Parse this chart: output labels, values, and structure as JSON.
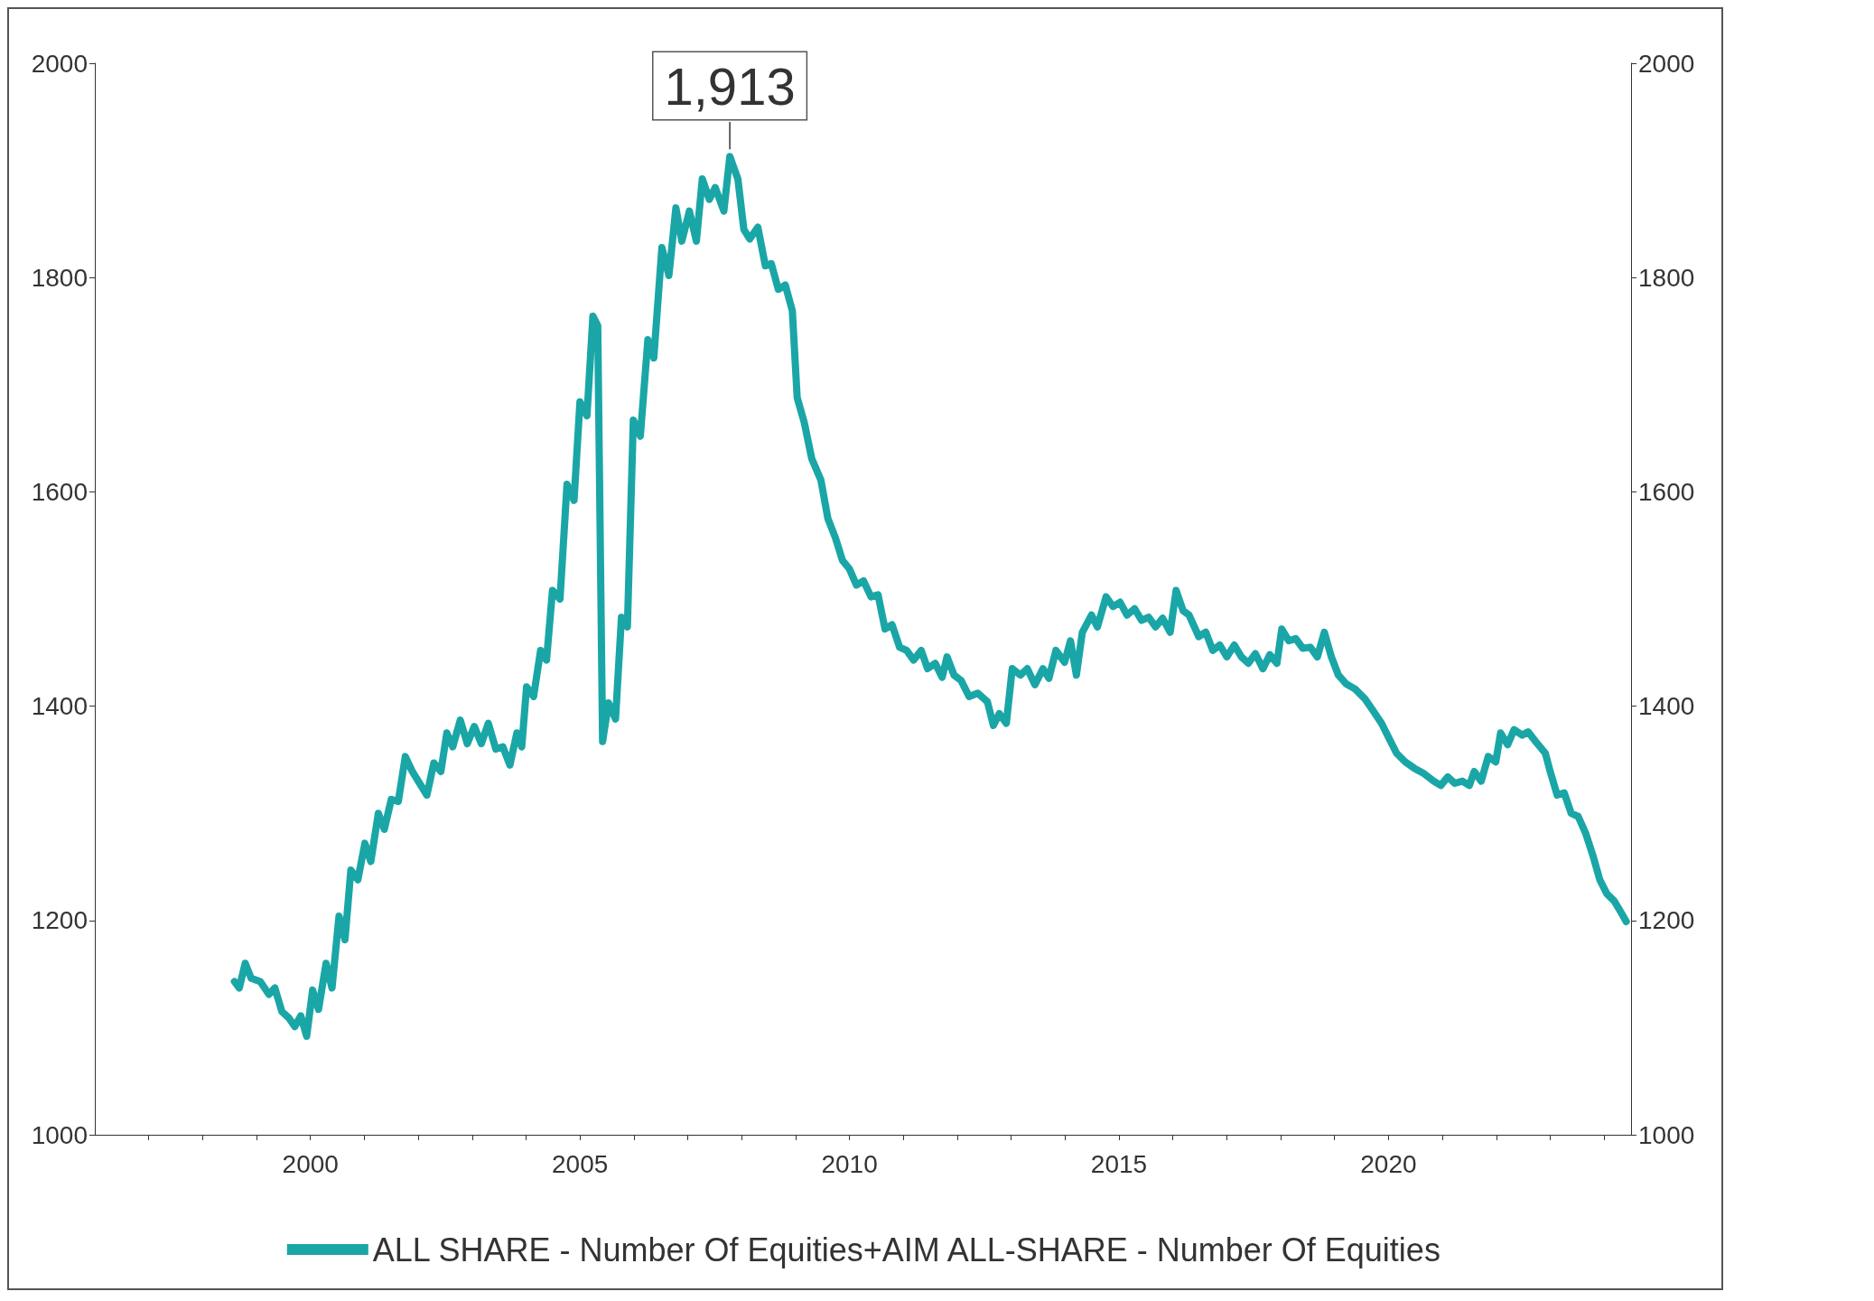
{
  "chart_data": {
    "type": "line",
    "x": [
      1998.59,
      1998.68,
      1998.79,
      1998.9,
      1999.07,
      1999.23,
      1999.34,
      1999.47,
      1999.6,
      1999.71,
      1999.82,
      1999.93,
      2000.04,
      2000.15,
      2000.29,
      2000.4,
      2000.53,
      2000.64,
      2000.75,
      2000.88,
      2001.01,
      2001.12,
      2001.26,
      2001.37,
      2001.5,
      2001.63,
      2001.76,
      2001.89,
      2002.16,
      2002.29,
      2002.42,
      2002.53,
      2002.64,
      2002.78,
      2002.91,
      2003.04,
      2003.17,
      2003.3,
      2003.44,
      2003.57,
      2003.7,
      2003.83,
      2003.92,
      2004.01,
      2004.14,
      2004.27,
      2004.38,
      2004.49,
      2004.63,
      2004.76,
      2004.89,
      2005.0,
      2005.13,
      2005.24,
      2005.33,
      2005.42,
      2005.53,
      2005.66,
      2005.77,
      2005.88,
      2005.99,
      2006.12,
      2006.26,
      2006.37,
      2006.52,
      2006.65,
      2006.78,
      2006.89,
      2007.03,
      2007.16,
      2007.27,
      2007.4,
      2007.51,
      2007.67,
      2007.78,
      2007.93,
      2008.04,
      2008.15,
      2008.3,
      2008.44,
      2008.55,
      2008.68,
      2008.81,
      2008.94,
      2009.03,
      2009.16,
      2009.3,
      2009.47,
      2009.6,
      2009.74,
      2009.87,
      2010.0,
      2010.13,
      2010.26,
      2010.4,
      2010.53,
      2010.66,
      2010.79,
      2010.93,
      2011.06,
      2011.19,
      2011.33,
      2011.45,
      2011.59,
      2011.72,
      2011.81,
      2011.94,
      2012.07,
      2012.22,
      2012.38,
      2012.56,
      2012.67,
      2012.78,
      2012.91,
      2013.02,
      2013.17,
      2013.3,
      2013.44,
      2013.59,
      2013.7,
      2013.83,
      2013.99,
      2014.1,
      2014.21,
      2014.32,
      2014.49,
      2014.6,
      2014.76,
      2014.89,
      2015.02,
      2015.15,
      2015.29,
      2015.42,
      2015.55,
      2015.68,
      2015.81,
      2015.95,
      2016.06,
      2016.19,
      2016.3,
      2016.48,
      2016.61,
      2016.74,
      2016.87,
      2017.0,
      2017.14,
      2017.27,
      2017.4,
      2017.53,
      2017.67,
      2017.8,
      2017.93,
      2018.02,
      2018.15,
      2018.28,
      2018.41,
      2018.55,
      2018.68,
      2018.81,
      2018.94,
      2019.07,
      2019.21,
      2019.38,
      2019.56,
      2019.71,
      2019.87,
      2020.0,
      2020.15,
      2020.31,
      2020.48,
      2020.66,
      2020.84,
      2020.97,
      2021.1,
      2021.23,
      2021.37,
      2021.5,
      2021.59,
      2021.72,
      2021.85,
      2021.99,
      2022.08,
      2022.21,
      2022.33,
      2022.48,
      2022.59,
      2022.73,
      2022.91,
      2023.0,
      2023.13,
      2023.26,
      2023.39,
      2023.52,
      2023.66,
      2023.79,
      2023.92,
      2024.05,
      2024.19,
      2024.32,
      2024.41
    ],
    "series": [
      {
        "name": "ALL SHARE - Number Of Equities+AIM ALL-SHARE - Number Of Equities",
        "color": "#1aa6a6",
        "values": [
          1143,
          1137,
          1160,
          1146,
          1143,
          1131,
          1137,
          1115,
          1109,
          1101,
          1111,
          1092,
          1135,
          1117,
          1160,
          1137,
          1204,
          1182,
          1247,
          1238,
          1272,
          1255,
          1300,
          1285,
          1313,
          1311,
          1353,
          1339,
          1317,
          1347,
          1339,
          1375,
          1362,
          1387,
          1365,
          1381,
          1365,
          1384,
          1360,
          1362,
          1345,
          1375,
          1362,
          1418,
          1409,
          1452,
          1443,
          1508,
          1500,
          1607,
          1592,
          1684,
          1671,
          1764,
          1755,
          1367,
          1403,
          1388,
          1483,
          1474,
          1667,
          1652,
          1742,
          1725,
          1828,
          1802,
          1865,
          1834,
          1862,
          1834,
          1892,
          1873,
          1884,
          1862,
          1913,
          1892,
          1845,
          1836,
          1847,
          1811,
          1813,
          1789,
          1793,
          1769,
          1688,
          1665,
          1631,
          1611,
          1575,
          1557,
          1536,
          1528,
          1513,
          1517,
          1502,
          1504,
          1472,
          1476,
          1455,
          1452,
          1443,
          1452,
          1435,
          1440,
          1427,
          1446,
          1429,
          1424,
          1409,
          1412,
          1404,
          1382,
          1393,
          1384,
          1435,
          1429,
          1435,
          1420,
          1435,
          1426,
          1452,
          1441,
          1461,
          1429,
          1469,
          1485,
          1474,
          1502,
          1493,
          1497,
          1485,
          1491,
          1480,
          1483,
          1474,
          1482,
          1469,
          1508,
          1489,
          1485,
          1465,
          1469,
          1452,
          1457,
          1446,
          1457,
          1446,
          1440,
          1449,
          1435,
          1448,
          1440,
          1472,
          1461,
          1463,
          1454,
          1455,
          1446,
          1469,
          1446,
          1429,
          1421,
          1416,
          1407,
          1396,
          1384,
          1371,
          1356,
          1348,
          1342,
          1337,
          1330,
          1326,
          1334,
          1328,
          1330,
          1326,
          1339,
          1330,
          1353,
          1348,
          1375,
          1364,
          1378,
          1373,
          1376,
          1367,
          1356,
          1339,
          1317,
          1319,
          1300,
          1297,
          1281,
          1261,
          1238,
          1225,
          1218,
          1207,
          1199
        ]
      }
    ],
    "xlim": [
      1996,
      2024.5
    ],
    "xticks": [
      {
        "value": 1997,
        "label": null
      },
      {
        "value": 1998,
        "label": null
      },
      {
        "value": 1999,
        "label": null
      },
      2000,
      {
        "value": 2001,
        "label": null
      },
      {
        "value": 2002,
        "label": null
      },
      {
        "value": 2003,
        "label": null
      },
      {
        "value": 2004,
        "label": null
      },
      2005,
      {
        "value": 2006,
        "label": null
      },
      {
        "value": 2007,
        "label": null
      },
      {
        "value": 2008,
        "label": null
      },
      {
        "value": 2009,
        "label": null
      },
      2010,
      {
        "value": 2011,
        "label": null
      },
      {
        "value": 2012,
        "label": null
      },
      {
        "value": 2013,
        "label": null
      },
      {
        "value": 2014,
        "label": null
      },
      2015,
      {
        "value": 2016,
        "label": null
      },
      {
        "value": 2017,
        "label": null
      },
      {
        "value": 2018,
        "label": null
      },
      {
        "value": 2019,
        "label": null
      },
      2020,
      {
        "value": 2021,
        "label": null
      },
      {
        "value": 2022,
        "label": null
      },
      {
        "value": 2023,
        "label": null
      },
      {
        "value": 2024,
        "label": null
      }
    ],
    "ylim": [
      1000,
      2000
    ],
    "yticks": [
      1000,
      1200,
      1400,
      1600,
      1800,
      2000
    ],
    "y2lim": [
      1000,
      2000
    ],
    "y2ticks": [
      1000,
      1200,
      1400,
      1600,
      1800,
      2000
    ],
    "annotations": [
      {
        "text": "1,913",
        "x": 2007.78,
        "y": 1913
      }
    ],
    "legend": "bottom",
    "grid": false,
    "line_style": "solid"
  }
}
